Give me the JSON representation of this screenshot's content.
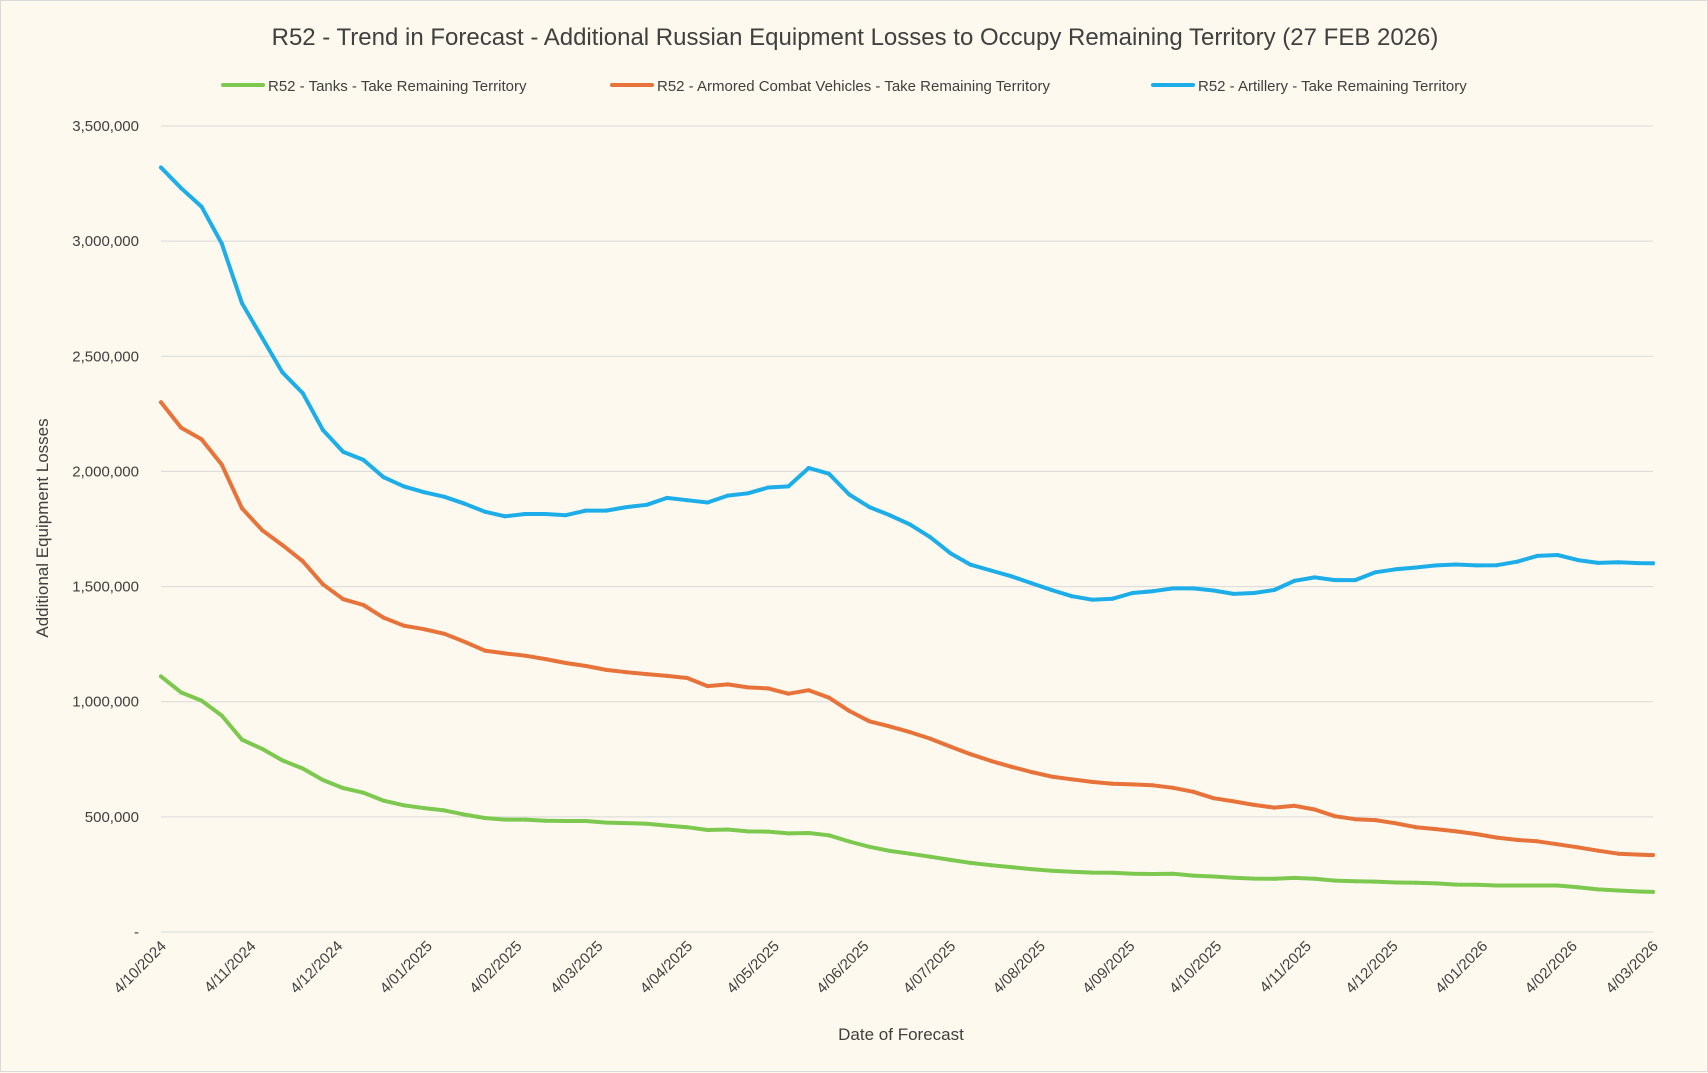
{
  "chart_data": {
    "type": "line",
    "title": "R52 - Trend in Forecast - Additional Russian Equipment Losses to Occupy Remaining Territory (27 FEB 2026)",
    "xlabel": "Date of Forecast",
    "ylabel": "Additional Equipment Losses",
    "ylim": [
      0,
      3500000
    ],
    "yticks": [
      {
        "value": 0,
        "label": "-"
      },
      {
        "value": 500000,
        "label": "500,000"
      },
      {
        "value": 1000000,
        "label": "1,000,000"
      },
      {
        "value": 1500000,
        "label": "1,500,000"
      },
      {
        "value": 2000000,
        "label": "2,000,000"
      },
      {
        "value": 2500000,
        "label": "2,500,000"
      },
      {
        "value": 3000000,
        "label": "3,000,000"
      },
      {
        "value": 3500000,
        "label": "3,500,000"
      }
    ],
    "xrange": [
      "2024-10-04",
      "2026-03-04"
    ],
    "xticks": [
      {
        "date": "2024-10-04",
        "label": "4/10/2024"
      },
      {
        "date": "2024-11-04",
        "label": "4/11/2024"
      },
      {
        "date": "2024-12-04",
        "label": "4/12/2024"
      },
      {
        "date": "2025-01-04",
        "label": "4/01/2025"
      },
      {
        "date": "2025-02-04",
        "label": "4/02/2025"
      },
      {
        "date": "2025-03-04",
        "label": "4/03/2025"
      },
      {
        "date": "2025-04-04",
        "label": "4/04/2025"
      },
      {
        "date": "2025-05-04",
        "label": "4/05/2025"
      },
      {
        "date": "2025-06-04",
        "label": "4/06/2025"
      },
      {
        "date": "2025-07-04",
        "label": "4/07/2025"
      },
      {
        "date": "2025-08-04",
        "label": "4/08/2025"
      },
      {
        "date": "2025-09-04",
        "label": "4/09/2025"
      },
      {
        "date": "2025-10-04",
        "label": "4/10/2025"
      },
      {
        "date": "2025-11-04",
        "label": "4/11/2025"
      },
      {
        "date": "2025-12-04",
        "label": "4/12/2025"
      },
      {
        "date": "2026-01-04",
        "label": "4/01/2026"
      },
      {
        "date": "2026-02-04",
        "label": "4/02/2026"
      },
      {
        "date": "2026-03-04",
        "label": "4/03/2026"
      }
    ],
    "grid": true,
    "legend_position": "top",
    "x": [
      "2024-10-04",
      "2024-10-11",
      "2024-10-18",
      "2024-10-25",
      "2024-11-01",
      "2024-11-08",
      "2024-11-15",
      "2024-11-22",
      "2024-11-29",
      "2024-12-06",
      "2024-12-13",
      "2024-12-20",
      "2024-12-27",
      "2025-01-03",
      "2025-01-10",
      "2025-01-17",
      "2025-01-24",
      "2025-01-31",
      "2025-02-07",
      "2025-02-14",
      "2025-02-21",
      "2025-02-28",
      "2025-03-07",
      "2025-03-14",
      "2025-03-21",
      "2025-03-28",
      "2025-04-04",
      "2025-04-11",
      "2025-04-18",
      "2025-04-25",
      "2025-05-02",
      "2025-05-09",
      "2025-05-16",
      "2025-05-23",
      "2025-05-30",
      "2025-06-06",
      "2025-06-13",
      "2025-06-20",
      "2025-06-27",
      "2025-07-04",
      "2025-07-11",
      "2025-07-18",
      "2025-07-25",
      "2025-08-01",
      "2025-08-08",
      "2025-08-15",
      "2025-08-22",
      "2025-08-29",
      "2025-09-05",
      "2025-09-12",
      "2025-09-19",
      "2025-09-26",
      "2025-10-03",
      "2025-10-10",
      "2025-10-17",
      "2025-10-24",
      "2025-10-31",
      "2025-11-07",
      "2025-11-14",
      "2025-11-21",
      "2025-11-28",
      "2025-12-05",
      "2025-12-12",
      "2025-12-19",
      "2025-12-26",
      "2026-01-02",
      "2026-01-09",
      "2026-01-16",
      "2026-01-23",
      "2026-01-30",
      "2026-02-06",
      "2026-02-13",
      "2026-02-20",
      "2026-02-27",
      "2026-03-04"
    ],
    "series": [
      {
        "name": "R52 - Tanks - Take Remaining Territory",
        "color": "#7DC950",
        "values": [
          1110000,
          1040000,
          1005000,
          940000,
          835000,
          795000,
          745000,
          710000,
          660000,
          625000,
          605000,
          570000,
          550000,
          538000,
          528000,
          510000,
          495000,
          488000,
          488000,
          483000,
          482000,
          482000,
          475000,
          473000,
          470000,
          462000,
          455000,
          443000,
          445000,
          437000,
          436000,
          428000,
          430000,
          420000,
          393000,
          370000,
          352000,
          340000,
          327000,
          313000,
          300000,
          290000,
          282000,
          273000,
          266000,
          262000,
          258000,
          257000,
          253000,
          252000,
          253000,
          245000,
          241000,
          236000,
          232000,
          231000,
          235000,
          231000,
          223000,
          220000,
          219000,
          215000,
          214000,
          211000,
          206000,
          205000,
          202000,
          202000,
          202000,
          202000,
          194000,
          185000,
          180000,
          176000,
          174000
        ]
      },
      {
        "name": "R52 - Armored Combat Vehicles - Take Remaining Territory",
        "color": "#E8733A",
        "values": [
          2300000,
          2190000,
          2140000,
          2030000,
          1840000,
          1745000,
          1680000,
          1610000,
          1510000,
          1445000,
          1420000,
          1365000,
          1330000,
          1315000,
          1295000,
          1260000,
          1222000,
          1210000,
          1200000,
          1185000,
          1168000,
          1155000,
          1138000,
          1128000,
          1120000,
          1112000,
          1103000,
          1068000,
          1075000,
          1062000,
          1058000,
          1035000,
          1050000,
          1018000,
          960000,
          915000,
          893000,
          868000,
          840000,
          805000,
          772000,
          743000,
          718000,
          695000,
          675000,
          663000,
          652000,
          644000,
          641000,
          637000,
          626000,
          609000,
          581000,
          567000,
          552000,
          540000,
          548000,
          532000,
          503000,
          490000,
          486000,
          472000,
          455000,
          447000,
          437000,
          425000,
          410000,
          400000,
          394000,
          381000,
          368000,
          353000,
          340000,
          336000,
          334000
        ]
      },
      {
        "name": "R52 - Artillery - Take Remaining Territory",
        "color": "#1DAEEA",
        "values": [
          3320000,
          3230000,
          3150000,
          2990000,
          2730000,
          2580000,
          2430000,
          2340000,
          2180000,
          2085000,
          2050000,
          1975000,
          1935000,
          1910000,
          1890000,
          1860000,
          1825000,
          1805000,
          1815000,
          1815000,
          1810000,
          1830000,
          1830000,
          1845000,
          1855000,
          1885000,
          1875000,
          1865000,
          1895000,
          1905000,
          1930000,
          1935000,
          2015000,
          1990000,
          1900000,
          1845000,
          1810000,
          1770000,
          1715000,
          1645000,
          1595000,
          1570000,
          1545000,
          1515000,
          1485000,
          1458000,
          1443000,
          1447000,
          1472000,
          1480000,
          1492000,
          1492000,
          1483000,
          1468000,
          1472000,
          1485000,
          1525000,
          1540000,
          1528000,
          1528000,
          1562000,
          1575000,
          1583000,
          1592000,
          1596000,
          1592000,
          1593000,
          1608000,
          1633000,
          1637000,
          1615000,
          1603000,
          1606000,
          1602000,
          1601000
        ]
      }
    ]
  }
}
